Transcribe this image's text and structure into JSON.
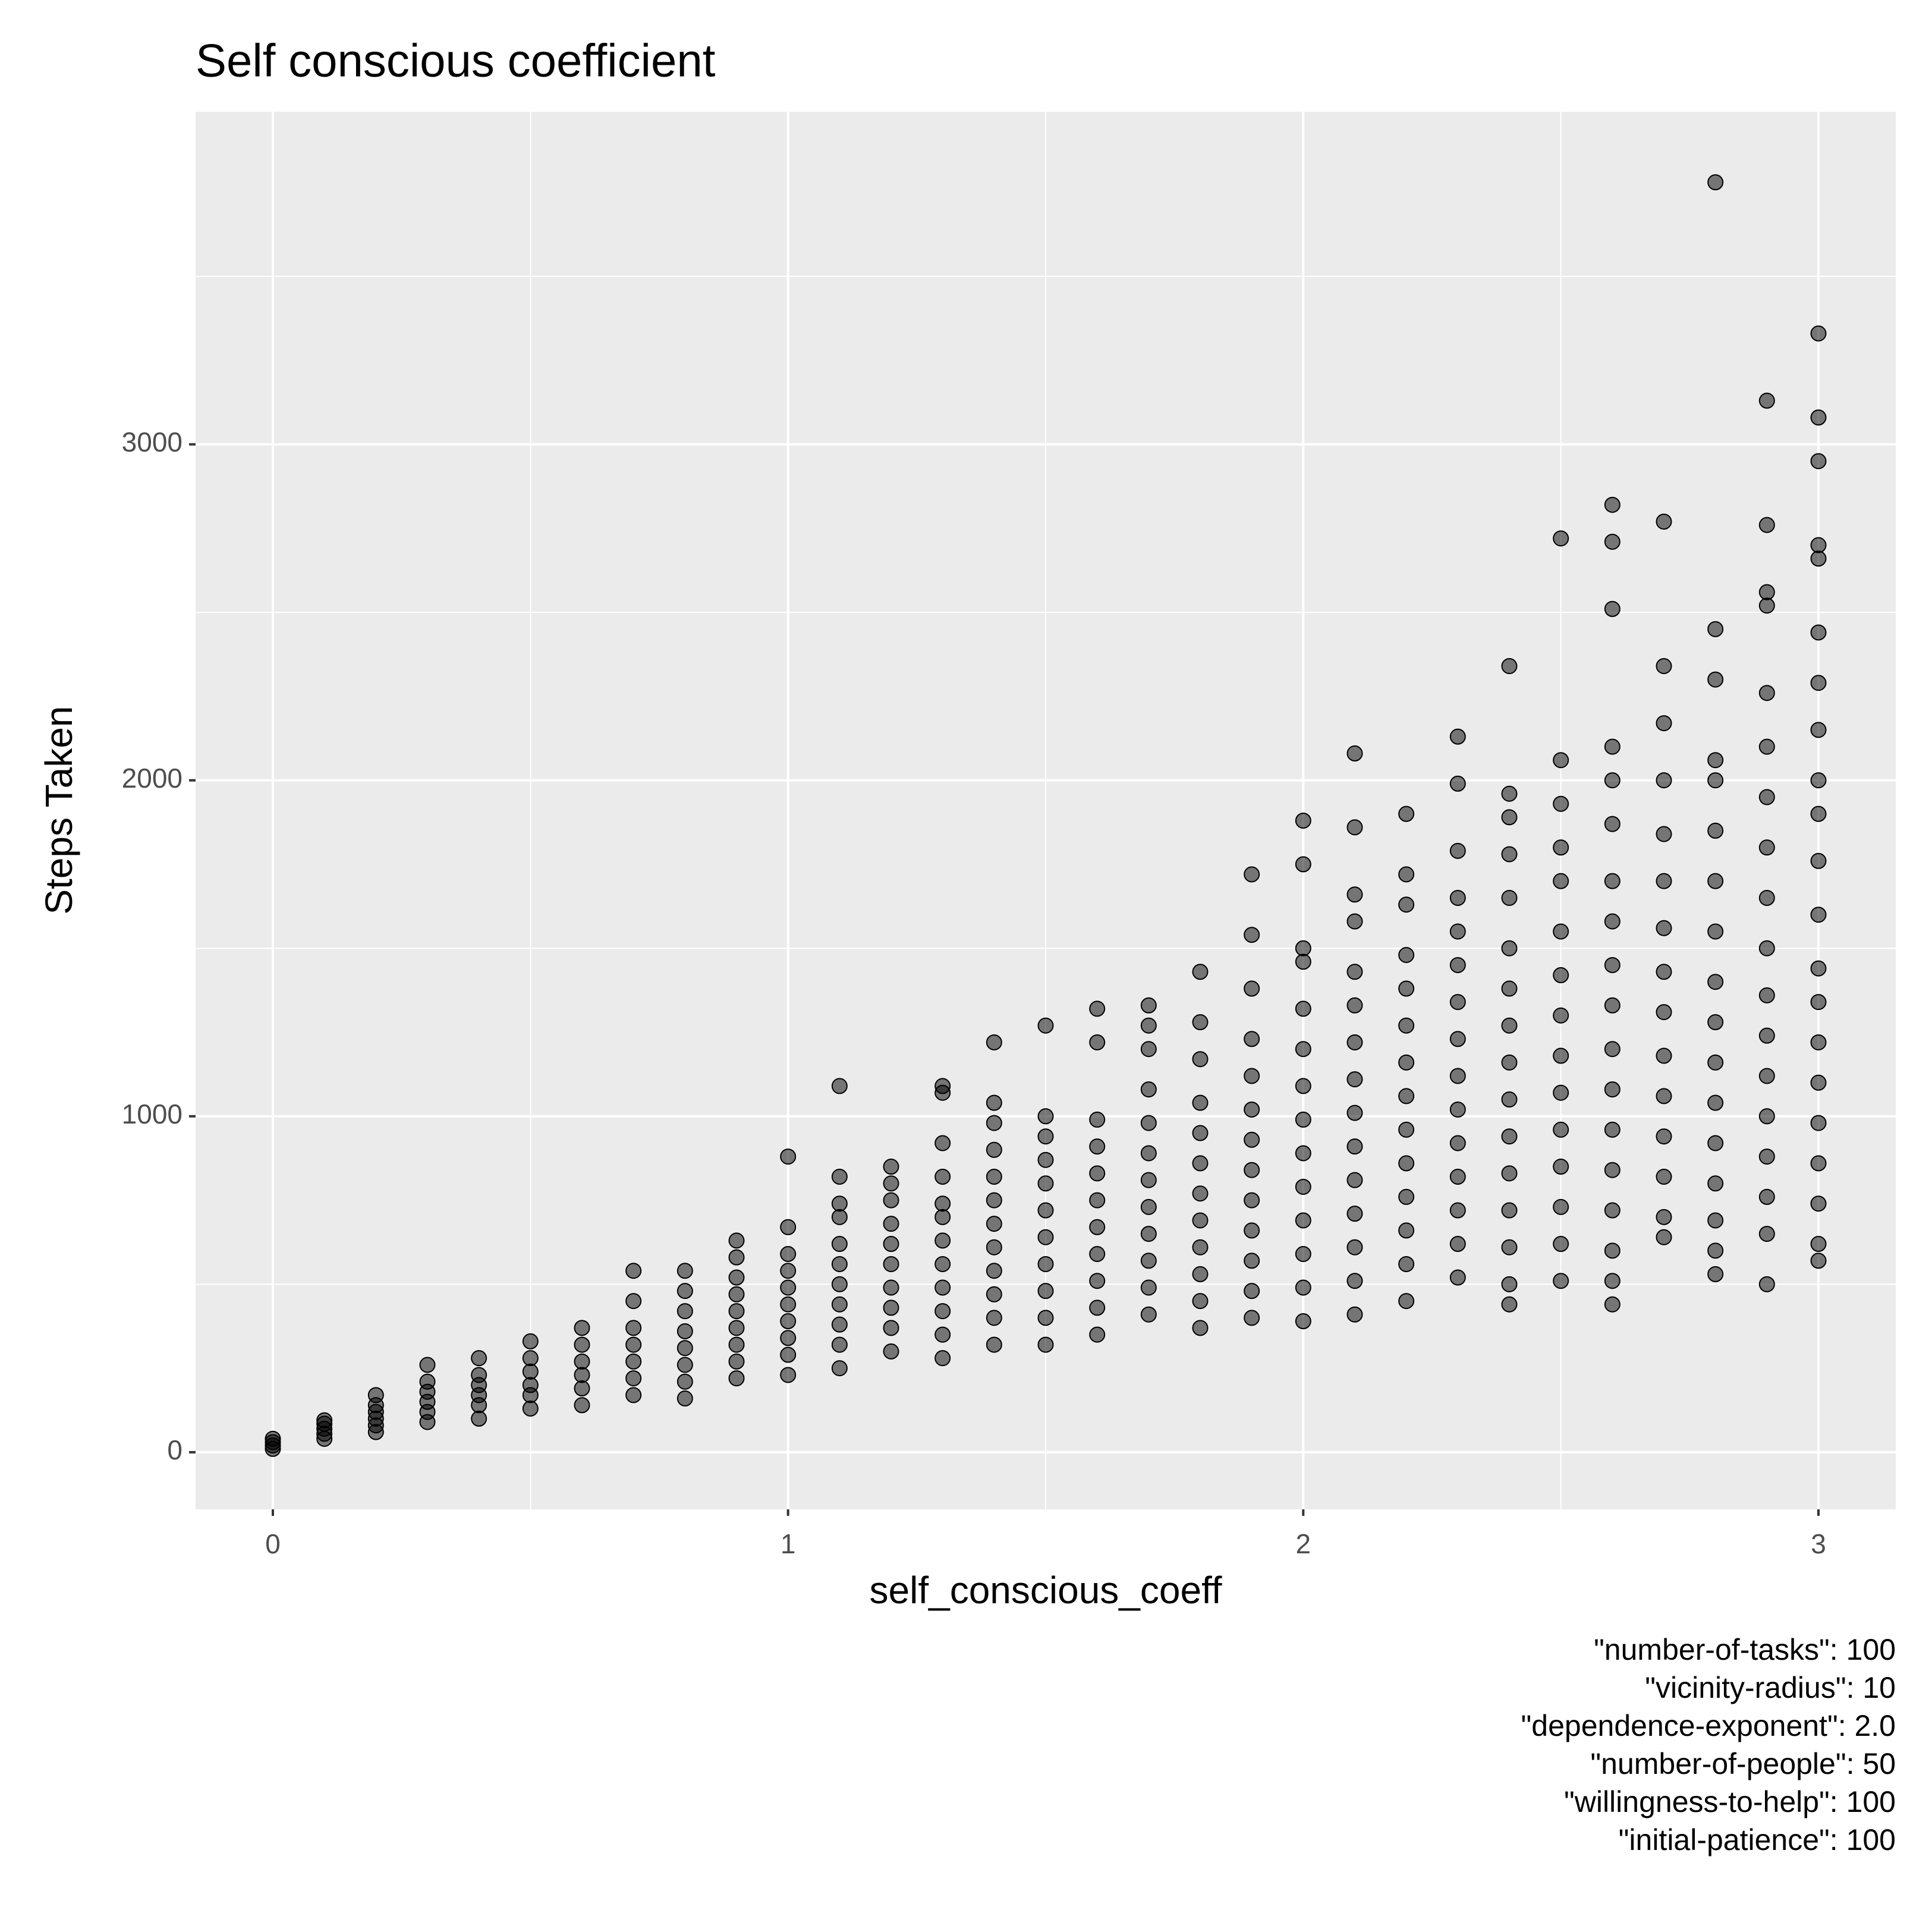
{
  "chart_data": {
    "type": "scatter",
    "title": "Self conscious coefficient",
    "x_label": "self_conscious_coeff",
    "y_label": "Steps Taken",
    "caption_lines": [
      "\"number-of-tasks\": 100",
      "\"vicinity-radius\": 10",
      "\"dependence-exponent\": 2.0",
      "\"number-of-people\": 50",
      "\"willingness-to-help\": 100",
      "\"initial-patience\": 100"
    ],
    "color": "#000000",
    "opacity": 0.5,
    "grid": true,
    "xlim": [
      -0.15,
      3.15
    ],
    "xticks": [
      0,
      1,
      2,
      3
    ],
    "x_minor_grid": [
      0.5,
      1.5,
      2.5
    ],
    "ylim": [
      -170,
      3990
    ],
    "yticks": [
      0,
      1000,
      2000,
      3000
    ],
    "y_minor_grid": [
      500,
      1500,
      2500,
      3500
    ],
    "x": [
      0,
      0,
      0,
      0,
      0.1,
      0.1,
      0.1,
      0.1,
      0.1,
      0.2,
      0.2,
      0.2,
      0.2,
      0.2,
      0.2,
      0.3,
      0.3,
      0.3,
      0.3,
      0.3,
      0.3,
      0.4,
      0.4,
      0.4,
      0.4,
      0.4,
      0.4,
      0.5,
      0.5,
      0.5,
      0.5,
      0.5,
      0.5,
      0.6,
      0.6,
      0.6,
      0.6,
      0.6,
      0.6,
      0.7,
      0.7,
      0.7,
      0.7,
      0.7,
      0.7,
      0.7,
      0.8,
      0.8,
      0.8,
      0.8,
      0.8,
      0.8,
      0.8,
      0.8,
      0.9,
      0.9,
      0.9,
      0.9,
      0.9,
      0.9,
      0.9,
      0.9,
      0.9,
      1,
      1,
      1,
      1,
      1,
      1,
      1,
      1,
      1,
      1,
      1.1,
      1.1,
      1.1,
      1.1,
      1.1,
      1.1,
      1.1,
      1.1,
      1.1,
      1.1,
      1.1,
      1.2,
      1.2,
      1.2,
      1.2,
      1.2,
      1.2,
      1.2,
      1.2,
      1.2,
      1.2,
      1.3,
      1.3,
      1.3,
      1.3,
      1.3,
      1.3,
      1.3,
      1.3,
      1.3,
      1.3,
      1.3,
      1.3,
      1.4,
      1.4,
      1.4,
      1.4,
      1.4,
      1.4,
      1.4,
      1.4,
      1.4,
      1.4,
      1.4,
      1.4,
      1.5,
      1.5,
      1.5,
      1.5,
      1.5,
      1.5,
      1.5,
      1.5,
      1.5,
      1.5,
      1.5,
      1.6,
      1.6,
      1.6,
      1.6,
      1.6,
      1.6,
      1.6,
      1.6,
      1.6,
      1.6,
      1.6,
      1.7,
      1.7,
      1.7,
      1.7,
      1.7,
      1.7,
      1.7,
      1.7,
      1.7,
      1.7,
      1.7,
      1.7,
      1.8,
      1.8,
      1.8,
      1.8,
      1.8,
      1.8,
      1.8,
      1.8,
      1.8,
      1.8,
      1.8,
      1.8,
      1.9,
      1.9,
      1.9,
      1.9,
      1.9,
      1.9,
      1.9,
      1.9,
      1.9,
      1.9,
      1.9,
      1.9,
      1.9,
      2,
      2,
      2,
      2,
      2,
      2,
      2,
      2,
      2,
      2,
      2,
      2,
      2,
      2,
      2.1,
      2.1,
      2.1,
      2.1,
      2.1,
      2.1,
      2.1,
      2.1,
      2.1,
      2.1,
      2.1,
      2.1,
      2.1,
      2.1,
      2.1,
      2.2,
      2.2,
      2.2,
      2.2,
      2.2,
      2.2,
      2.2,
      2.2,
      2.2,
      2.2,
      2.2,
      2.2,
      2.2,
      2.2,
      2.3,
      2.3,
      2.3,
      2.3,
      2.3,
      2.3,
      2.3,
      2.3,
      2.3,
      2.3,
      2.3,
      2.3,
      2.3,
      2.3,
      2.3,
      2.4,
      2.4,
      2.4,
      2.4,
      2.4,
      2.4,
      2.4,
      2.4,
      2.4,
      2.4,
      2.4,
      2.4,
      2.4,
      2.4,
      2.4,
      2.4,
      2.5,
      2.5,
      2.5,
      2.5,
      2.5,
      2.5,
      2.5,
      2.5,
      2.5,
      2.5,
      2.5,
      2.5,
      2.5,
      2.5,
      2.5,
      2.6,
      2.6,
      2.6,
      2.6,
      2.6,
      2.6,
      2.6,
      2.6,
      2.6,
      2.6,
      2.6,
      2.6,
      2.6,
      2.6,
      2.6,
      2.6,
      2.6,
      2.6,
      2.7,
      2.7,
      2.7,
      2.7,
      2.7,
      2.7,
      2.7,
      2.7,
      2.7,
      2.7,
      2.7,
      2.7,
      2.7,
      2.7,
      2.7,
      2.8,
      2.8,
      2.8,
      2.8,
      2.8,
      2.8,
      2.8,
      2.8,
      2.8,
      2.8,
      2.8,
      2.8,
      2.8,
      2.8,
      2.8,
      2.8,
      2.8,
      2.9,
      2.9,
      2.9,
      2.9,
      2.9,
      2.9,
      2.9,
      2.9,
      2.9,
      2.9,
      2.9,
      2.9,
      2.9,
      2.9,
      2.9,
      2.9,
      2.9,
      2.9,
      3,
      3,
      3,
      3,
      3,
      3,
      3,
      3,
      3,
      3,
      3,
      3,
      3,
      3,
      3,
      3,
      3,
      3,
      3,
      3,
      3
    ],
    "values": [
      10,
      20,
      30,
      40,
      40,
      55,
      70,
      85,
      95,
      60,
      80,
      100,
      120,
      140,
      170,
      90,
      120,
      150,
      180,
      210,
      260,
      100,
      140,
      170,
      200,
      230,
      280,
      130,
      170,
      200,
      240,
      280,
      330,
      140,
      190,
      230,
      270,
      320,
      370,
      170,
      220,
      270,
      320,
      370,
      450,
      540,
      160,
      210,
      260,
      310,
      360,
      420,
      480,
      540,
      220,
      270,
      320,
      370,
      420,
      470,
      520,
      580,
      630,
      230,
      290,
      340,
      390,
      440,
      490,
      540,
      590,
      670,
      880,
      250,
      320,
      380,
      440,
      500,
      560,
      620,
      700,
      740,
      820,
      1090,
      300,
      370,
      430,
      490,
      560,
      620,
      680,
      750,
      800,
      850,
      280,
      350,
      420,
      490,
      560,
      630,
      700,
      740,
      820,
      920,
      1070,
      1090,
      320,
      400,
      470,
      540,
      610,
      680,
      750,
      820,
      900,
      980,
      1040,
      1220,
      320,
      400,
      480,
      560,
      640,
      720,
      800,
      870,
      940,
      1000,
      1270,
      350,
      430,
      510,
      590,
      670,
      750,
      830,
      910,
      990,
      1220,
      1320,
      410,
      490,
      570,
      650,
      730,
      810,
      890,
      980,
      1080,
      1200,
      1270,
      1330,
      370,
      450,
      530,
      610,
      690,
      770,
      860,
      950,
      1040,
      1170,
      1280,
      1430,
      400,
      480,
      570,
      660,
      750,
      840,
      930,
      1020,
      1120,
      1230,
      1380,
      1540,
      1720,
      390,
      490,
      590,
      690,
      790,
      890,
      990,
      1090,
      1200,
      1320,
      1460,
      1500,
      1750,
      1880,
      410,
      510,
      610,
      710,
      810,
      910,
      1010,
      1110,
      1220,
      1330,
      1430,
      1580,
      1660,
      1860,
      2080,
      450,
      560,
      660,
      760,
      860,
      960,
      1060,
      1160,
      1270,
      1380,
      1480,
      1630,
      1720,
      1900,
      520,
      620,
      720,
      820,
      920,
      1020,
      1120,
      1230,
      1340,
      1450,
      1550,
      1650,
      1790,
      1990,
      2130,
      440,
      500,
      610,
      720,
      830,
      940,
      1050,
      1160,
      1270,
      1380,
      1500,
      1650,
      1780,
      1890,
      1960,
      2340,
      510,
      620,
      730,
      850,
      960,
      1070,
      1180,
      1300,
      1420,
      1550,
      1700,
      1800,
      1930,
      2060,
      2720,
      440,
      510,
      600,
      720,
      840,
      960,
      1080,
      1200,
      1330,
      1450,
      1580,
      1700,
      1870,
      2000,
      2100,
      2510,
      2710,
      2820,
      640,
      700,
      820,
      940,
      1060,
      1180,
      1310,
      1430,
      1560,
      1700,
      1840,
      2000,
      2170,
      2340,
      2770,
      530,
      600,
      690,
      800,
      920,
      1040,
      1160,
      1280,
      1400,
      1550,
      1700,
      1850,
      2000,
      2060,
      2300,
      2450,
      3780,
      500,
      650,
      760,
      880,
      1000,
      1120,
      1240,
      1360,
      1500,
      1650,
      1800,
      1950,
      2100,
      2260,
      2520,
      2560,
      2760,
      3130,
      570,
      620,
      740,
      860,
      980,
      1100,
      1220,
      1340,
      1440,
      1600,
      1760,
      1900,
      2000,
      2150,
      2290,
      2440,
      2660,
      2700,
      2950,
      3080,
      3330
    ]
  }
}
